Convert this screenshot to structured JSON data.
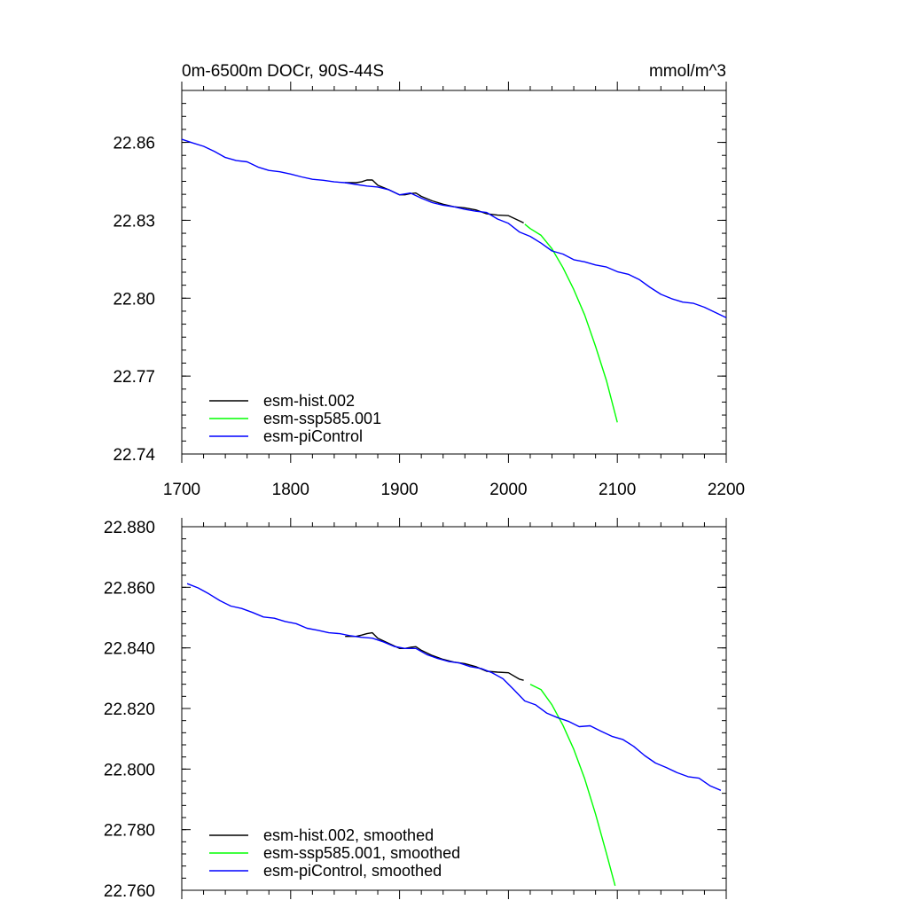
{
  "chart_data": [
    {
      "type": "line",
      "title": "0m-6500m DOCr, 90S-44S",
      "units": "mmol/m^3",
      "xlim": [
        1700,
        2200
      ],
      "ylim": [
        22.74,
        22.88
      ],
      "xticks": [
        "1700",
        "1800",
        "1900",
        "2000",
        "2100",
        "2200"
      ],
      "yticks": [
        "22.74",
        "22.77",
        "22.80",
        "22.83",
        "22.86"
      ],
      "grid": false,
      "legend_position": "bottom-left",
      "series": [
        {
          "name": "esm-hist.002",
          "color": "#000000",
          "x": [
            1850,
            1860,
            1865,
            1870,
            1875,
            1880,
            1890,
            1900,
            1905,
            1910,
            1915,
            1920,
            1930,
            1940,
            1950,
            1960,
            1970,
            1980,
            1990,
            2000,
            2010,
            2014
          ],
          "y": [
            22.8445,
            22.8445,
            22.8448,
            22.8455,
            22.8455,
            22.8435,
            22.8418,
            22.8398,
            22.8398,
            22.8403,
            22.8405,
            22.8392,
            22.8375,
            22.8362,
            22.8352,
            22.8348,
            22.834,
            22.8325,
            22.832,
            22.8318,
            22.8298,
            22.829
          ]
        },
        {
          "name": "esm-ssp585.001",
          "color": "#00ff00",
          "x": [
            2015,
            2020,
            2030,
            2040,
            2050,
            2060,
            2070,
            2080,
            2090,
            2100
          ],
          "y": [
            22.8285,
            22.8268,
            22.8242,
            22.819,
            22.8118,
            22.8033,
            22.7935,
            22.7815,
            22.7683,
            22.7522
          ]
        },
        {
          "name": "esm-piControl",
          "color": "#0000ff",
          "x": [
            1700,
            1710,
            1720,
            1730,
            1740,
            1750,
            1760,
            1770,
            1780,
            1790,
            1800,
            1810,
            1820,
            1830,
            1840,
            1850,
            1860,
            1870,
            1880,
            1890,
            1900,
            1910,
            1920,
            1930,
            1940,
            1950,
            1960,
            1970,
            1980,
            1990,
            2000,
            2010,
            2020,
            2030,
            2040,
            2050,
            2060,
            2070,
            2080,
            2090,
            2100,
            2110,
            2120,
            2130,
            2140,
            2150,
            2160,
            2170,
            2180,
            2190,
            2200
          ],
          "y": [
            22.8612,
            22.8598,
            22.8585,
            22.8565,
            22.8542,
            22.853,
            22.8525,
            22.8505,
            22.8492,
            22.8487,
            22.8478,
            22.8467,
            22.8458,
            22.8454,
            22.8448,
            22.8445,
            22.8438,
            22.8432,
            22.8428,
            22.8418,
            22.8398,
            22.8405,
            22.8385,
            22.8368,
            22.8358,
            22.8352,
            22.8342,
            22.8335,
            22.833,
            22.8305,
            22.8288,
            22.8255,
            22.8238,
            22.8212,
            22.8182,
            22.817,
            22.8148,
            22.814,
            22.8128,
            22.812,
            22.8102,
            22.8092,
            22.8072,
            22.8042,
            22.8015,
            22.7998,
            22.7985,
            22.798,
            22.7965,
            22.7945,
            22.7925
          ]
        }
      ]
    },
    {
      "type": "line",
      "xlim": [
        1700,
        2200
      ],
      "ylim": [
        22.76,
        22.88
      ],
      "yticks": [
        "22.760",
        "22.780",
        "22.800",
        "22.820",
        "22.840",
        "22.860",
        "22.880"
      ],
      "grid": false,
      "legend_position": "bottom-left",
      "series": [
        {
          "name": "esm-hist.002, smoothed",
          "color": "#000000",
          "x": [
            1850,
            1860,
            1865,
            1870,
            1875,
            1880,
            1890,
            1900,
            1905,
            1910,
            1915,
            1920,
            1930,
            1940,
            1950,
            1960,
            1970,
            1980,
            1990,
            2000,
            2010,
            2014
          ],
          "y": [
            22.8438,
            22.8438,
            22.8442,
            22.8447,
            22.845,
            22.8432,
            22.8415,
            22.8398,
            22.8398,
            22.8402,
            22.8404,
            22.8392,
            22.8375,
            22.8362,
            22.8353,
            22.8348,
            22.8338,
            22.8323,
            22.832,
            22.8318,
            22.8297,
            22.8293
          ]
        },
        {
          "name": "esm-ssp585.001, smoothed",
          "color": "#00ff00",
          "x": [
            2020,
            2030,
            2040,
            2050,
            2060,
            2070,
            2080,
            2090,
            2098
          ],
          "y": [
            22.828,
            22.8262,
            22.8212,
            22.8145,
            22.8065,
            22.7968,
            22.7852,
            22.7722,
            22.7615
          ]
        },
        {
          "name": "esm-piControl, smoothed",
          "color": "#0000ff",
          "x": [
            1705,
            1715,
            1725,
            1735,
            1745,
            1755,
            1765,
            1775,
            1785,
            1795,
            1805,
            1815,
            1825,
            1835,
            1845,
            1855,
            1865,
            1875,
            1885,
            1895,
            1905,
            1915,
            1925,
            1935,
            1945,
            1955,
            1965,
            1975,
            1985,
            1995,
            2005,
            2015,
            2025,
            2035,
            2045,
            2055,
            2065,
            2075,
            2085,
            2095,
            2105,
            2115,
            2125,
            2135,
            2145,
            2155,
            2165,
            2175,
            2185,
            2195
          ],
          "y": [
            22.8612,
            22.8598,
            22.8578,
            22.8556,
            22.8538,
            22.853,
            22.8517,
            22.8502,
            22.8498,
            22.8487,
            22.848,
            22.8465,
            22.8458,
            22.845,
            22.8447,
            22.844,
            22.8435,
            22.8432,
            22.842,
            22.8405,
            22.8398,
            22.8398,
            22.8378,
            22.8365,
            22.8355,
            22.835,
            22.8338,
            22.8332,
            22.8318,
            22.8298,
            22.8262,
            22.8225,
            22.8212,
            22.8185,
            22.817,
            22.8158,
            22.814,
            22.8143,
            22.8125,
            22.8108,
            22.8098,
            22.8075,
            22.8045,
            22.802,
            22.8005,
            22.7988,
            22.7975,
            22.797,
            22.7945,
            22.793
          ]
        }
      ]
    }
  ]
}
